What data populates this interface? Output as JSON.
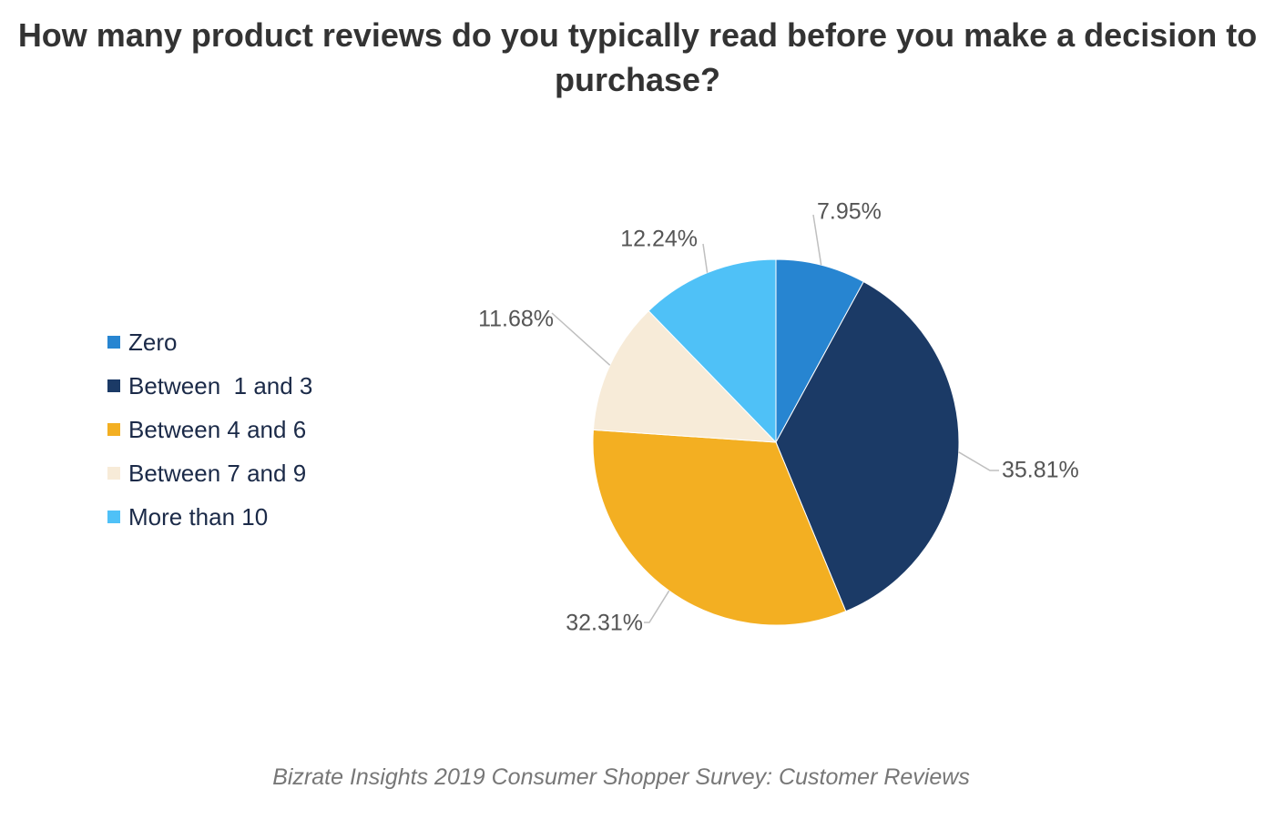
{
  "title": "How many product reviews do you typically read before you make a decision to purchase?",
  "source": "Bizrate Insights 2019 Consumer Shopper Survey: Customer Reviews",
  "chart_data": {
    "type": "pie",
    "categories": [
      "Zero",
      "Between  1 and 3",
      "Between 4 and 6",
      "Between 7 and 9",
      "More than 10"
    ],
    "values": [
      7.95,
      35.81,
      32.31,
      11.68,
      12.24
    ],
    "data_labels": [
      "7.95%",
      "35.81%",
      "32.31%",
      "11.68%",
      "12.24%"
    ],
    "colors": [
      "#2785d1",
      "#1b3a66",
      "#f3af22",
      "#f7ebd8",
      "#4fc1f7"
    ],
    "legend_position": "left",
    "start": "12 o'clock, clockwise"
  }
}
